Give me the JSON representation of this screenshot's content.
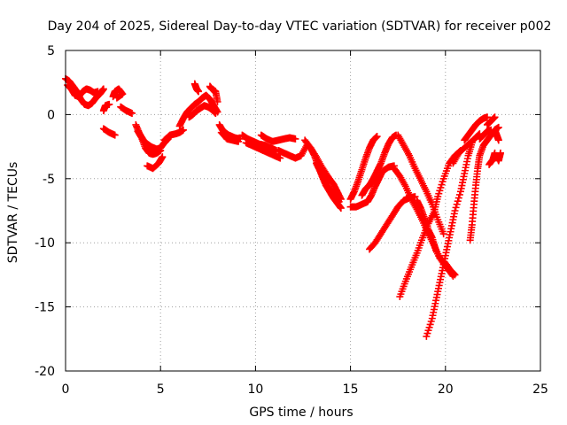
{
  "chart_data": {
    "type": "scatter",
    "title": "Day 204 of 2025, Sidereal Day-to-day VTEC variation (SDTVAR) for receiver p002",
    "xlabel": "GPS time / hours",
    "ylabel": "SDTVAR / TECUs",
    "xlim": [
      0,
      25
    ],
    "ylim": [
      -20,
      5
    ],
    "xticks": [
      0,
      5,
      10,
      15,
      20,
      25
    ],
    "yticks": [
      5,
      0,
      -5,
      -10,
      -15,
      -20
    ],
    "grid": true,
    "marker": "+",
    "color": "#ff0000",
    "series": [
      {
        "values": [
          [
            0.0,
            2.8
          ],
          [
            0.2,
            2.6
          ],
          [
            0.4,
            2.2
          ],
          [
            0.6,
            1.8
          ],
          [
            0.8,
            1.2
          ],
          [
            1.0,
            0.8
          ],
          [
            1.2,
            0.7
          ],
          [
            1.4,
            0.9
          ],
          [
            1.6,
            1.3
          ],
          [
            1.8,
            1.6
          ],
          [
            1.9,
            1.8
          ],
          [
            2.0,
            2.0
          ]
        ]
      },
      {
        "values": [
          [
            0.1,
            2.3
          ],
          [
            0.3,
            2.0
          ],
          [
            0.5,
            1.5
          ],
          [
            0.7,
            1.4
          ],
          [
            0.9,
            1.8
          ],
          [
            1.1,
            2.0
          ],
          [
            1.3,
            1.9
          ],
          [
            1.5,
            1.7
          ],
          [
            1.7,
            1.8
          ]
        ]
      },
      {
        "values": [
          [
            2.0,
            0.3
          ],
          [
            2.1,
            0.7
          ],
          [
            2.3,
            0.8
          ]
        ]
      },
      {
        "values": [
          [
            2.5,
            1.4
          ],
          [
            2.6,
            1.8
          ],
          [
            2.8,
            2.0
          ],
          [
            3.0,
            1.6
          ],
          [
            2.7,
            1.3
          ]
        ]
      },
      {
        "values": [
          [
            2.9,
            0.6
          ],
          [
            3.2,
            0.3
          ],
          [
            3.5,
            0.1
          ]
        ]
      },
      {
        "values": [
          [
            2.0,
            -1.1
          ],
          [
            2.3,
            -1.4
          ],
          [
            2.6,
            -1.6
          ]
        ]
      },
      {
        "values": [
          [
            3.7,
            -0.8
          ],
          [
            3.9,
            -1.5
          ],
          [
            4.1,
            -2.0
          ],
          [
            4.3,
            -2.3
          ],
          [
            4.5,
            -2.5
          ],
          [
            4.8,
            -2.7
          ],
          [
            5.0,
            -2.6
          ],
          [
            5.2,
            -2.2
          ],
          [
            5.4,
            -1.9
          ]
        ]
      },
      {
        "values": [
          [
            3.8,
            -1.3
          ],
          [
            4.0,
            -1.8
          ],
          [
            4.2,
            -2.6
          ],
          [
            4.4,
            -3.0
          ],
          [
            4.6,
            -3.1
          ],
          [
            4.8,
            -3.0
          ],
          [
            5.0,
            -2.8
          ]
        ]
      },
      {
        "values": [
          [
            4.3,
            -4.0
          ],
          [
            4.6,
            -4.2
          ],
          [
            4.9,
            -3.8
          ],
          [
            5.1,
            -3.3
          ]
        ]
      },
      {
        "values": [
          [
            5.2,
            -2.0
          ],
          [
            5.5,
            -1.6
          ],
          [
            5.8,
            -1.5
          ],
          [
            6.0,
            -1.4
          ],
          [
            6.2,
            -1.2
          ]
        ]
      },
      {
        "values": [
          [
            6.0,
            -0.9
          ],
          [
            6.2,
            -0.3
          ],
          [
            6.4,
            0.2
          ],
          [
            6.6,
            0.5
          ],
          [
            6.8,
            0.8
          ],
          [
            7.0,
            1.0
          ],
          [
            7.2,
            1.3
          ],
          [
            7.4,
            1.5
          ],
          [
            7.6,
            1.2
          ],
          [
            7.8,
            0.7
          ],
          [
            8.0,
            0.2
          ]
        ]
      },
      {
        "values": [
          [
            6.5,
            -0.2
          ],
          [
            6.7,
            0.0
          ],
          [
            6.9,
            0.3
          ],
          [
            7.1,
            0.5
          ],
          [
            7.3,
            0.7
          ],
          [
            7.5,
            0.6
          ],
          [
            7.7,
            0.4
          ],
          [
            7.9,
            0.1
          ]
        ]
      },
      {
        "values": [
          [
            6.8,
            2.4
          ],
          [
            6.9,
            2.0
          ],
          [
            7.0,
            1.8
          ]
        ]
      },
      {
        "values": [
          [
            7.6,
            2.2
          ],
          [
            7.7,
            2.0
          ],
          [
            7.9,
            1.8
          ],
          [
            8.0,
            1.0
          ]
        ]
      },
      {
        "values": [
          [
            8.1,
            -0.8
          ],
          [
            8.3,
            -1.3
          ],
          [
            8.6,
            -1.6
          ],
          [
            8.9,
            -1.8
          ],
          [
            9.2,
            -1.9
          ]
        ]
      },
      {
        "values": [
          [
            8.2,
            -1.4
          ],
          [
            8.5,
            -1.9
          ],
          [
            8.8,
            -2.0
          ],
          [
            9.1,
            -2.1
          ]
        ]
      },
      {
        "values": [
          [
            9.3,
            -1.6
          ],
          [
            9.6,
            -1.9
          ],
          [
            9.9,
            -2.1
          ],
          [
            10.2,
            -2.3
          ],
          [
            10.5,
            -2.4
          ],
          [
            10.8,
            -2.6
          ],
          [
            11.1,
            -2.8
          ]
        ]
      },
      {
        "values": [
          [
            9.5,
            -2.2
          ],
          [
            9.8,
            -2.4
          ],
          [
            10.1,
            -2.6
          ],
          [
            10.4,
            -2.8
          ],
          [
            10.7,
            -3.0
          ],
          [
            11.0,
            -3.2
          ],
          [
            11.3,
            -3.4
          ]
        ]
      },
      {
        "values": [
          [
            10.3,
            -1.6
          ],
          [
            10.6,
            -1.9
          ],
          [
            10.9,
            -2.1
          ],
          [
            11.2,
            -2.0
          ],
          [
            11.5,
            -1.9
          ],
          [
            11.8,
            -1.8
          ],
          [
            12.1,
            -1.9
          ]
        ]
      },
      {
        "values": [
          [
            11.2,
            -2.8
          ],
          [
            11.5,
            -3.0
          ],
          [
            11.8,
            -3.2
          ],
          [
            12.1,
            -3.4
          ],
          [
            12.4,
            -3.2
          ],
          [
            12.7,
            -2.4
          ]
        ]
      },
      {
        "values": [
          [
            12.6,
            -2.0
          ],
          [
            12.9,
            -2.6
          ],
          [
            13.2,
            -3.3
          ],
          [
            13.5,
            -4.1
          ],
          [
            13.8,
            -4.8
          ],
          [
            14.1,
            -5.4
          ],
          [
            14.3,
            -6.0
          ],
          [
            14.5,
            -6.6
          ]
        ]
      },
      {
        "values": [
          [
            12.9,
            -2.6
          ],
          [
            13.1,
            -3.2
          ],
          [
            13.3,
            -4.0
          ],
          [
            13.5,
            -4.8
          ],
          [
            13.7,
            -5.5
          ],
          [
            13.9,
            -6.0
          ],
          [
            14.1,
            -6.5
          ],
          [
            14.3,
            -6.9
          ],
          [
            14.5,
            -7.3
          ]
        ]
      },
      {
        "values": [
          [
            13.2,
            -3.8
          ],
          [
            13.4,
            -4.4
          ],
          [
            13.6,
            -5.0
          ],
          [
            13.8,
            -5.6
          ],
          [
            14.0,
            -6.0
          ],
          [
            14.2,
            -6.4
          ],
          [
            14.4,
            -6.8
          ]
        ]
      },
      {
        "values": [
          [
            15.0,
            -6.6
          ],
          [
            15.2,
            -6.0
          ],
          [
            15.4,
            -5.2
          ],
          [
            15.6,
            -4.3
          ],
          [
            15.8,
            -3.4
          ],
          [
            16.0,
            -2.6
          ],
          [
            16.2,
            -2.0
          ],
          [
            16.4,
            -1.7
          ]
        ]
      },
      {
        "values": [
          [
            15.0,
            -7.2
          ],
          [
            15.3,
            -7.2
          ],
          [
            15.6,
            -7.0
          ],
          [
            15.9,
            -6.8
          ],
          [
            16.1,
            -6.3
          ],
          [
            16.3,
            -5.6
          ],
          [
            16.5,
            -5.0
          ],
          [
            16.7,
            -4.4
          ],
          [
            17.0,
            -4.1
          ],
          [
            17.3,
            -4.0
          ]
        ]
      },
      {
        "values": [
          [
            15.6,
            -6.3
          ],
          [
            15.8,
            -5.8
          ],
          [
            16.0,
            -5.5
          ],
          [
            16.2,
            -5.0
          ],
          [
            16.4,
            -4.4
          ],
          [
            16.6,
            -3.8
          ],
          [
            16.8,
            -3.0
          ],
          [
            17.0,
            -2.3
          ],
          [
            17.2,
            -1.8
          ],
          [
            17.4,
            -1.6
          ]
        ]
      },
      {
        "values": [
          [
            16.0,
            -10.5
          ],
          [
            16.3,
            -10.0
          ],
          [
            16.6,
            -9.3
          ],
          [
            16.9,
            -8.6
          ],
          [
            17.2,
            -7.9
          ],
          [
            17.5,
            -7.2
          ],
          [
            17.8,
            -6.7
          ],
          [
            18.1,
            -6.5
          ],
          [
            18.4,
            -6.4
          ]
        ]
      },
      {
        "values": [
          [
            17.3,
            -4.2
          ],
          [
            17.6,
            -4.8
          ],
          [
            17.9,
            -5.6
          ],
          [
            18.2,
            -6.6
          ],
          [
            18.5,
            -7.4
          ],
          [
            18.8,
            -8.3
          ],
          [
            19.1,
            -9.3
          ],
          [
            19.4,
            -10.2
          ],
          [
            19.7,
            -11.2
          ],
          [
            20.0,
            -11.6
          ],
          [
            20.3,
            -12.2
          ],
          [
            20.5,
            -12.5
          ]
        ]
      },
      {
        "values": [
          [
            17.5,
            -1.6
          ],
          [
            17.8,
            -2.4
          ],
          [
            18.1,
            -3.2
          ],
          [
            18.4,
            -4.2
          ],
          [
            18.7,
            -5.1
          ],
          [
            19.0,
            -6.0
          ],
          [
            19.3,
            -7.0
          ],
          [
            19.6,
            -8.2
          ],
          [
            19.9,
            -9.3
          ]
        ]
      },
      {
        "values": [
          [
            17.6,
            -14.2
          ],
          [
            17.9,
            -13.0
          ],
          [
            18.2,
            -11.9
          ],
          [
            18.5,
            -10.8
          ],
          [
            18.8,
            -9.6
          ],
          [
            19.1,
            -8.5
          ],
          [
            19.4,
            -7.6
          ],
          [
            19.6,
            -6.4
          ],
          [
            19.9,
            -5.0
          ],
          [
            20.2,
            -3.8
          ],
          [
            20.5,
            -3.2
          ],
          [
            20.8,
            -2.8
          ]
        ]
      },
      {
        "values": [
          [
            18.5,
            -6.7
          ],
          [
            18.7,
            -7.3
          ],
          [
            18.9,
            -8.1
          ],
          [
            19.1,
            -9.0
          ],
          [
            19.3,
            -9.6
          ],
          [
            19.5,
            -10.6
          ],
          [
            19.8,
            -11.4
          ],
          [
            20.1,
            -12.0
          ],
          [
            20.4,
            -12.6
          ]
        ]
      },
      {
        "values": [
          [
            19.0,
            -17.3
          ],
          [
            19.3,
            -15.9
          ],
          [
            19.5,
            -14.5
          ],
          [
            19.7,
            -13.1
          ],
          [
            19.9,
            -11.7
          ],
          [
            20.1,
            -10.3
          ],
          [
            20.3,
            -8.9
          ],
          [
            20.5,
            -7.5
          ],
          [
            20.8,
            -6.0
          ],
          [
            21.0,
            -4.6
          ],
          [
            21.2,
            -3.2
          ],
          [
            21.4,
            -2.2
          ]
        ]
      },
      {
        "values": [
          [
            20.4,
            -3.8
          ],
          [
            20.7,
            -3.0
          ],
          [
            21.0,
            -2.6
          ],
          [
            21.3,
            -2.2
          ],
          [
            21.6,
            -1.8
          ],
          [
            21.8,
            -1.5
          ]
        ]
      },
      {
        "values": [
          [
            21.0,
            -2.0
          ],
          [
            21.2,
            -1.6
          ],
          [
            21.4,
            -1.2
          ],
          [
            21.6,
            -0.8
          ],
          [
            21.8,
            -0.5
          ],
          [
            22.0,
            -0.3
          ],
          [
            22.2,
            -0.2
          ]
        ]
      },
      {
        "values": [
          [
            21.3,
            -9.8
          ],
          [
            21.4,
            -8.6
          ],
          [
            21.5,
            -7.0
          ],
          [
            21.6,
            -5.5
          ],
          [
            21.7,
            -4.2
          ],
          [
            21.8,
            -3.2
          ],
          [
            22.0,
            -2.4
          ],
          [
            22.2,
            -2.0
          ],
          [
            22.4,
            -1.6
          ],
          [
            22.6,
            -1.2
          ],
          [
            22.8,
            -1.0
          ]
        ]
      },
      {
        "values": [
          [
            21.8,
            -1.9
          ],
          [
            22.0,
            -1.6
          ],
          [
            22.2,
            -1.3
          ],
          [
            22.4,
            -1.2
          ]
        ]
      },
      {
        "values": [
          [
            22.2,
            -0.8
          ],
          [
            22.4,
            -0.5
          ],
          [
            22.6,
            -0.2
          ]
        ]
      },
      {
        "values": [
          [
            22.3,
            -3.9
          ],
          [
            22.5,
            -3.5
          ],
          [
            22.6,
            -3.0
          ]
        ]
      },
      {
        "values": [
          [
            22.6,
            -1.2
          ],
          [
            22.7,
            -1.6
          ],
          [
            22.8,
            -2.0
          ]
        ]
      },
      {
        "values": [
          [
            22.7,
            -3.2
          ],
          [
            22.8,
            -3.6
          ],
          [
            22.9,
            -3.0
          ]
        ]
      }
    ]
  }
}
